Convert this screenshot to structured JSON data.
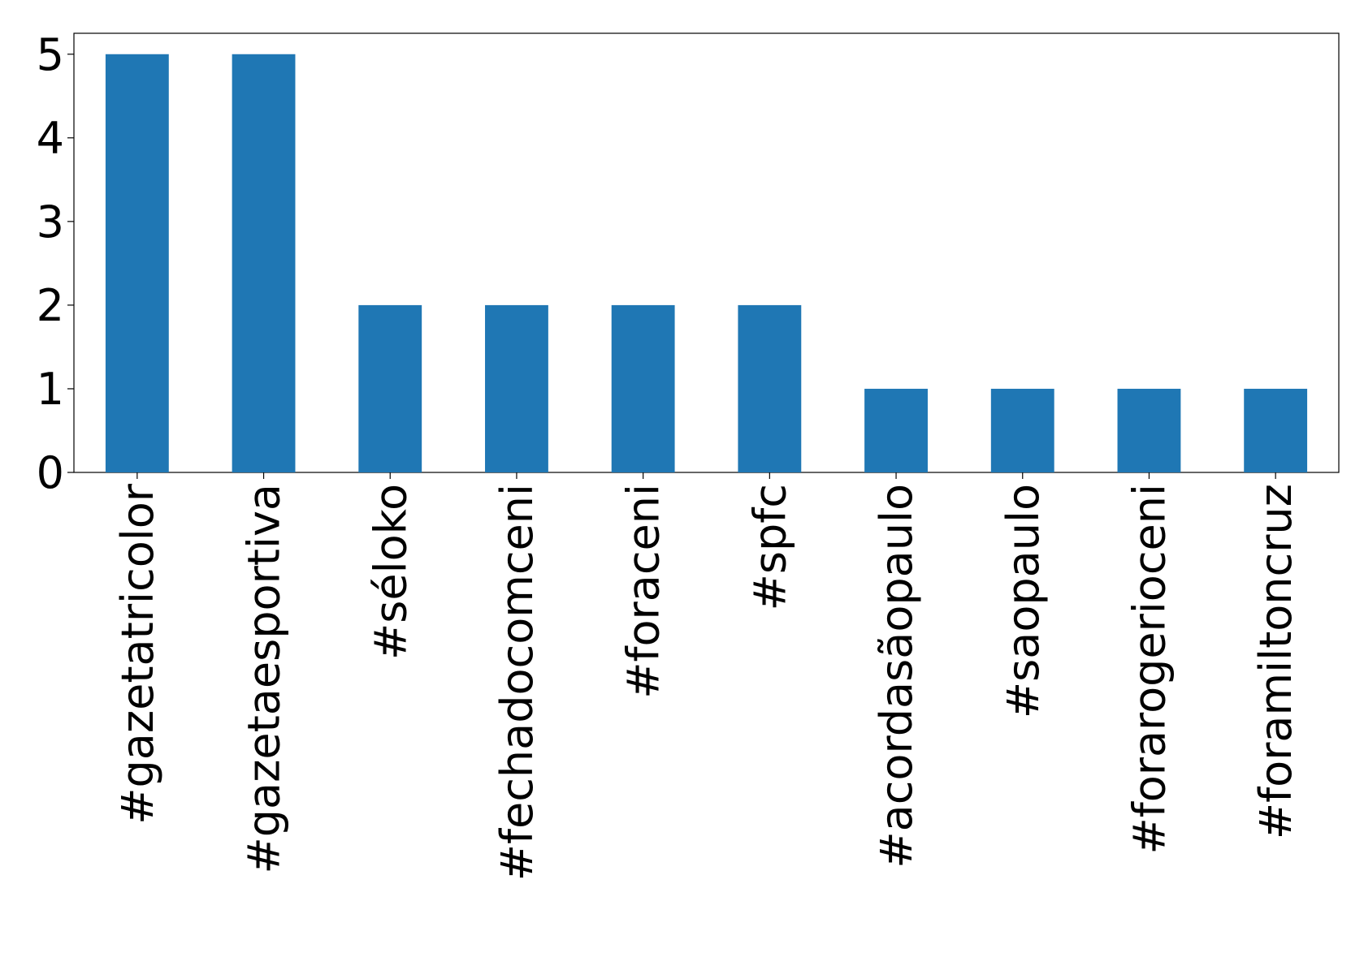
{
  "chart_data": {
    "type": "bar",
    "categories": [
      "#gazetatricolor",
      "#gazetaesportiva",
      "#séloko",
      "#fechadocomceni",
      "#foraceni",
      "#spfc",
      "#acordasãopaulo",
      "#saopaulo",
      "#forarogerioceni",
      "#foramiltoncruz"
    ],
    "values": [
      5,
      5,
      2,
      2,
      2,
      2,
      1,
      1,
      1,
      1
    ],
    "color": "#1f77b4",
    "ylim": [
      0,
      5.25
    ],
    "yticks": [
      0,
      1,
      2,
      3,
      4,
      5
    ],
    "grid": false
  }
}
